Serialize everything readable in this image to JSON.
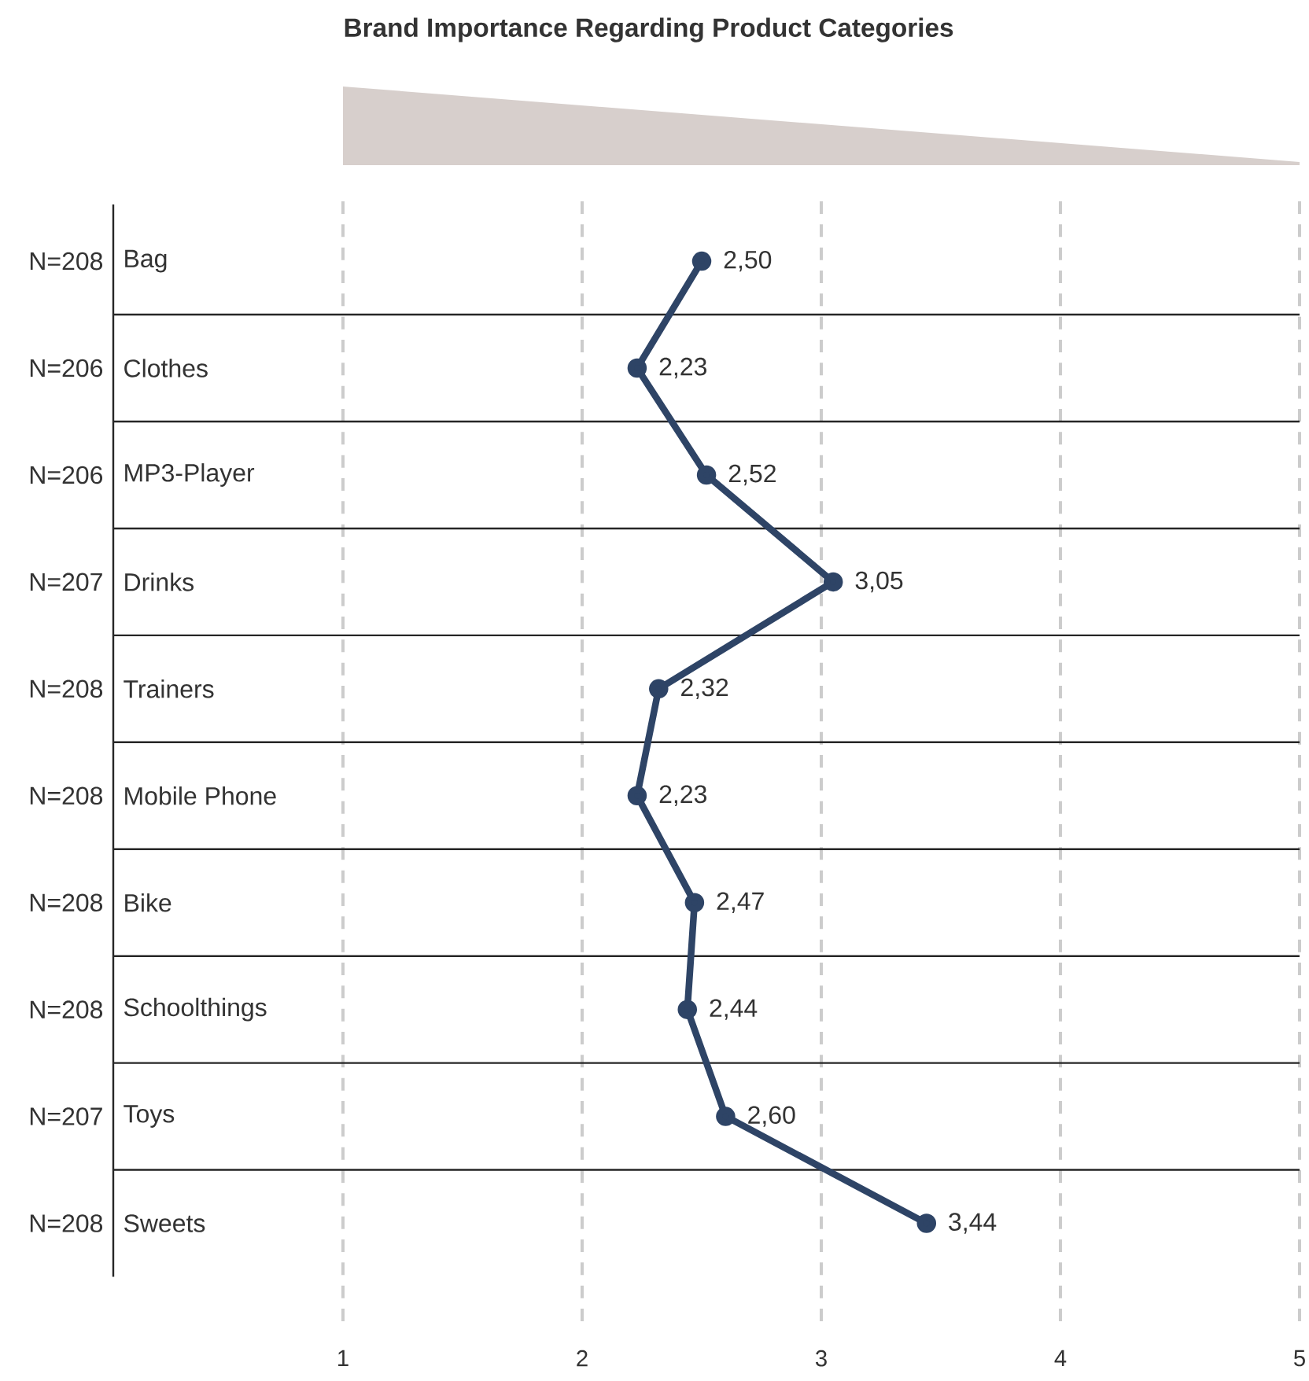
{
  "chart_data": {
    "type": "line",
    "orientation": "horizontal",
    "title": "Brand Importance Regarding Product Categories",
    "categories": [
      "Bag",
      "Clothes",
      "MP3-Player",
      "Drinks",
      "Trainers",
      "Mobile Phone",
      "Bike",
      "Schoolthings",
      "Toys",
      "Sweets"
    ],
    "series": [
      {
        "color": "#2e4466",
        "values": [
          2.5,
          2.23,
          2.52,
          3.05,
          2.32,
          2.23,
          2.47,
          2.44,
          2.6,
          3.44
        ],
        "value_labels": [
          "2,50",
          "2,23",
          "2,52",
          "3,05",
          "2,32",
          "2,23",
          "2,47",
          "2,44",
          "2,60",
          "3,44"
        ]
      }
    ],
    "annotations": [
      "N=208",
      "N=206",
      "N=206",
      "N=207",
      "N=208",
      "N=208",
      "N=208",
      "N=208",
      "N=207",
      "N=208"
    ],
    "xlim": [
      1,
      5
    ],
    "xticks": [
      1,
      2,
      3,
      4,
      5
    ],
    "grid": "x",
    "marker": "circle",
    "line_style": "solid"
  }
}
